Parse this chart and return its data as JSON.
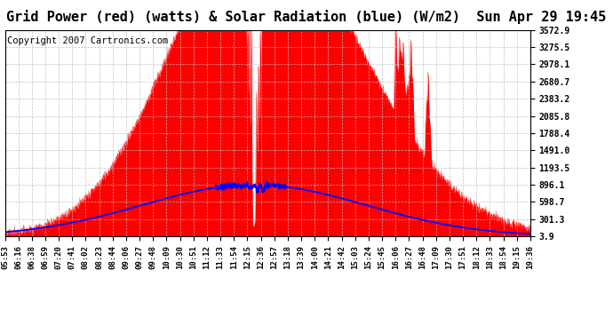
{
  "title": "Grid Power (red) (watts) & Solar Radiation (blue) (W/m2)  Sun Apr 29 19:45",
  "copyright": "Copyright 2007 Cartronics.com",
  "y_ticks": [
    3.9,
    301.3,
    598.7,
    896.1,
    1193.5,
    1491.0,
    1788.4,
    2085.8,
    2383.2,
    2680.7,
    2978.1,
    3275.5,
    3572.9
  ],
  "y_min": 0,
  "y_max": 3572.9,
  "x_labels": [
    "05:53",
    "06:16",
    "06:38",
    "06:59",
    "07:20",
    "07:41",
    "08:02",
    "08:23",
    "08:44",
    "09:06",
    "09:27",
    "09:48",
    "10:09",
    "10:30",
    "10:51",
    "11:12",
    "11:33",
    "11:54",
    "12:15",
    "12:36",
    "12:57",
    "13:18",
    "13:39",
    "14:00",
    "14:21",
    "14:42",
    "15:03",
    "15:24",
    "15:45",
    "16:06",
    "16:27",
    "16:48",
    "17:09",
    "17:30",
    "17:51",
    "18:12",
    "18:33",
    "18:54",
    "19:15",
    "19:36"
  ],
  "bg_color": "#ffffff",
  "grid_color": "#aaaaaa",
  "red_color": "#ff0000",
  "blue_color": "#0000ff",
  "title_fontsize": 11,
  "copyright_fontsize": 7.5
}
